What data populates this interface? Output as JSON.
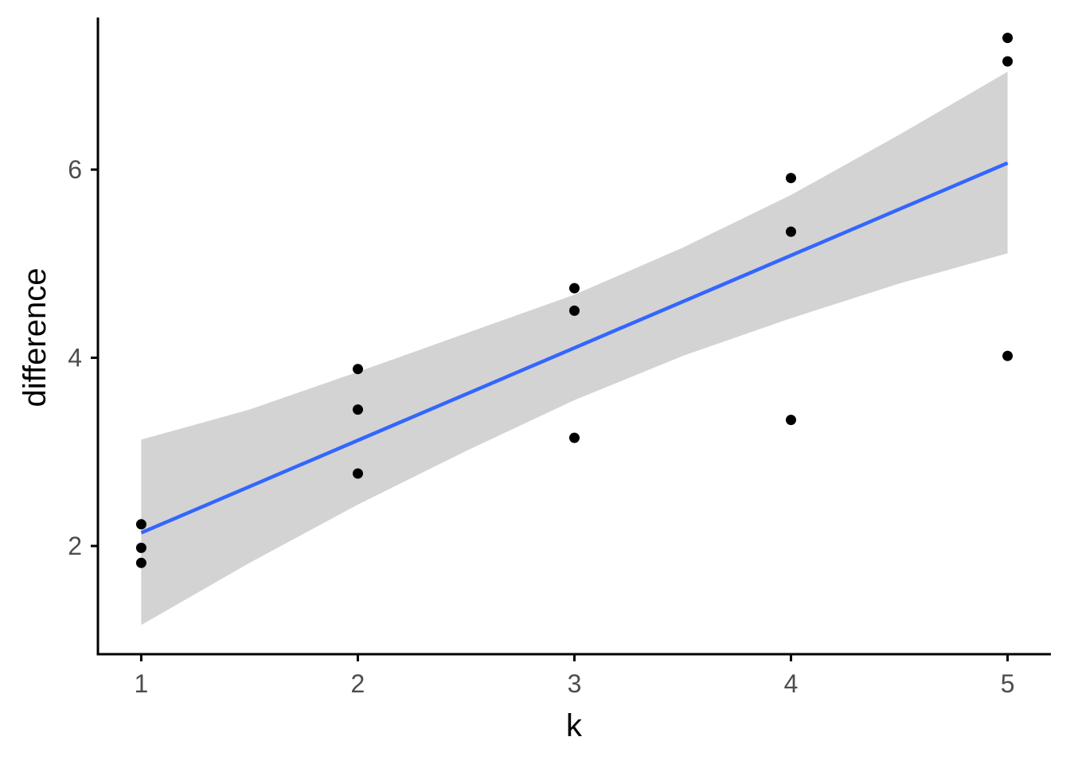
{
  "chart_data": {
    "type": "scatter",
    "title": "",
    "xlabel": "k",
    "ylabel": "difference",
    "xlim": [
      0.8,
      5.2
    ],
    "ylim": [
      0.85,
      7.65
    ],
    "x_ticks": [
      1,
      2,
      3,
      4,
      5
    ],
    "y_ticks": [
      2,
      4,
      6
    ],
    "grid": false,
    "legend": "none",
    "points": [
      {
        "x": 1,
        "y": 2.23
      },
      {
        "x": 1,
        "y": 1.98
      },
      {
        "x": 1,
        "y": 1.82
      },
      {
        "x": 2,
        "y": 3.88
      },
      {
        "x": 2,
        "y": 3.45
      },
      {
        "x": 2,
        "y": 2.77
      },
      {
        "x": 3,
        "y": 4.74
      },
      {
        "x": 3,
        "y": 4.5
      },
      {
        "x": 3,
        "y": 3.15
      },
      {
        "x": 4,
        "y": 5.91
      },
      {
        "x": 4,
        "y": 5.34
      },
      {
        "x": 4,
        "y": 3.34
      },
      {
        "x": 5,
        "y": 7.4
      },
      {
        "x": 5,
        "y": 7.15
      },
      {
        "x": 5,
        "y": 4.02
      }
    ],
    "trend_line": {
      "method": "linear",
      "x": [
        1,
        5
      ],
      "y": [
        2.14,
        6.07
      ]
    },
    "confidence_band": {
      "x": [
        1,
        1.5,
        2,
        2.5,
        3,
        3.5,
        4,
        4.5,
        5
      ],
      "lower": [
        1.16,
        1.82,
        2.44,
        3.01,
        3.55,
        4.02,
        4.42,
        4.79,
        5.11
      ],
      "upper": [
        3.13,
        3.45,
        3.85,
        4.26,
        4.67,
        5.17,
        5.73,
        6.37,
        7.04
      ]
    },
    "colors": {
      "points": "#000000",
      "trend_line": "#3366ff",
      "confidence_band": "#d3d3d3",
      "axis": "#000000",
      "tick_labels": "#4d4d4d"
    }
  }
}
